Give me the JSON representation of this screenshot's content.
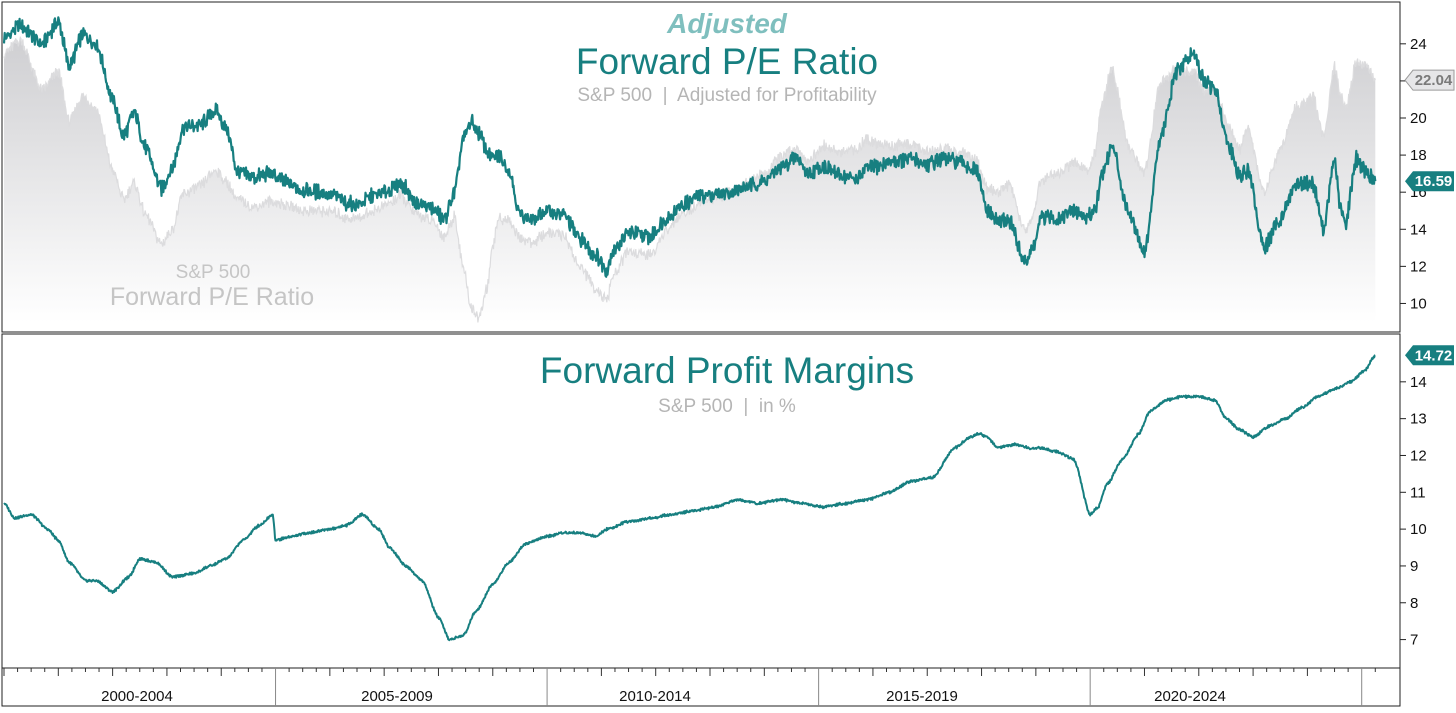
{
  "chart_data": [
    {
      "type": "line",
      "panel": "top",
      "title_prefix": "Adjusted",
      "title": "Forward P/E Ratio",
      "subtitle": "S&P 500  |  Adjusted for Profitability",
      "background_series_label_line1": "S&P 500",
      "background_series_label_line2": "Forward P/E Ratio",
      "ylim": [
        9,
        25.5
      ],
      "yticks": [
        10,
        12,
        14,
        16,
        18,
        20,
        22,
        24
      ],
      "xlim": [
        2000,
        2025.3
      ],
      "series": [
        {
          "name": "Adjusted Forward P/E Ratio",
          "color": "#177f80",
          "last_value_label": "16.59",
          "x": [
            2000.0,
            2000.3,
            2000.7,
            2001.0,
            2001.2,
            2001.45,
            2001.7,
            2002.0,
            2002.2,
            2002.4,
            2002.6,
            2002.9,
            2003.1,
            2003.3,
            2003.6,
            2003.9,
            2004.1,
            2004.3,
            2004.6,
            2004.9,
            2005.2,
            2005.5,
            2005.8,
            2006.1,
            2006.3,
            2006.5,
            2006.8,
            2007.1,
            2007.3,
            2007.6,
            2007.9,
            2008.1,
            2008.3,
            2008.45,
            2008.6,
            2008.75,
            2008.9,
            2009.0,
            2009.1,
            2009.3,
            2009.5,
            2009.75,
            2010.0,
            2010.3,
            2010.6,
            2010.9,
            2011.1,
            2011.2,
            2011.5,
            2011.9,
            2012.2,
            2012.5,
            2012.8,
            2013.1,
            2013.4,
            2013.7,
            2014.0,
            2014.3,
            2014.6,
            2014.8,
            2015.1,
            2015.4,
            2015.7,
            2015.9,
            2016.1,
            2016.4,
            2016.7,
            2017.0,
            2017.3,
            2017.6,
            2017.9,
            2018.1,
            2018.3,
            2018.5,
            2018.8,
            2018.95,
            2019.1,
            2019.4,
            2019.7,
            2019.95,
            2020.1,
            2020.2,
            2020.4,
            2020.7,
            2021.0,
            2021.3,
            2021.6,
            2021.9,
            2022.1,
            2022.3,
            2022.55,
            2022.75,
            2022.9,
            2023.2,
            2023.5,
            2023.8,
            2024.1,
            2024.3,
            2024.5,
            2024.6,
            2024.7,
            2024.9,
            2025.1,
            2025.25
          ],
          "values": [
            24.3,
            25.0,
            24.0,
            25.2,
            22.8,
            24.5,
            24.0,
            21.0,
            19.0,
            20.3,
            18.4,
            16.2,
            17.3,
            19.5,
            19.6,
            20.4,
            19.4,
            17.1,
            16.8,
            17.0,
            16.5,
            16.1,
            16.0,
            15.8,
            15.4,
            15.3,
            15.8,
            16.1,
            16.5,
            15.4,
            15.1,
            14.5,
            16.0,
            18.8,
            19.8,
            19.2,
            18.2,
            17.8,
            18.0,
            17.2,
            14.8,
            14.5,
            15.0,
            14.8,
            13.5,
            12.6,
            11.8,
            12.8,
            13.8,
            13.6,
            14.6,
            15.3,
            15.8,
            15.9,
            16.0,
            16.3,
            16.6,
            17.3,
            17.9,
            17.0,
            17.4,
            16.9,
            16.7,
            17.3,
            17.4,
            17.7,
            17.8,
            17.5,
            17.8,
            17.6,
            17.2,
            15.0,
            14.4,
            14.5,
            12.2,
            13.0,
            14.6,
            14.6,
            15.0,
            14.6,
            15.2,
            16.8,
            18.5,
            15.0,
            12.8,
            19.0,
            22.5,
            23.5,
            22.0,
            21.5,
            18.6,
            16.8,
            17.2,
            13.0,
            14.6,
            16.5,
            16.5,
            14.0,
            17.8,
            15.2,
            14.3,
            17.8,
            17.0,
            16.59
          ]
        },
        {
          "name": "S&P 500 Forward P/E Ratio",
          "color": "#d9d9db",
          "last_value_label": "22.04",
          "x": [
            2000.0,
            2000.3,
            2000.7,
            2001.0,
            2001.2,
            2001.45,
            2001.7,
            2002.0,
            2002.2,
            2002.4,
            2002.6,
            2002.9,
            2003.1,
            2003.3,
            2003.6,
            2003.9,
            2004.1,
            2004.3,
            2004.6,
            2004.9,
            2005.2,
            2005.5,
            2005.8,
            2006.1,
            2006.3,
            2006.5,
            2006.8,
            2007.1,
            2007.3,
            2007.6,
            2007.9,
            2008.1,
            2008.3,
            2008.45,
            2008.6,
            2008.75,
            2008.9,
            2009.0,
            2009.1,
            2009.3,
            2009.5,
            2009.75,
            2010.0,
            2010.3,
            2010.6,
            2010.9,
            2011.1,
            2011.2,
            2011.5,
            2011.9,
            2012.2,
            2012.5,
            2012.8,
            2013.1,
            2013.4,
            2013.7,
            2014.0,
            2014.3,
            2014.6,
            2014.8,
            2015.1,
            2015.4,
            2015.7,
            2015.9,
            2016.1,
            2016.4,
            2016.7,
            2017.0,
            2017.3,
            2017.6,
            2017.9,
            2018.1,
            2018.3,
            2018.5,
            2018.8,
            2018.95,
            2019.1,
            2019.4,
            2019.7,
            2019.95,
            2020.1,
            2020.2,
            2020.4,
            2020.7,
            2021.0,
            2021.3,
            2021.6,
            2021.9,
            2022.1,
            2022.3,
            2022.55,
            2022.75,
            2022.9,
            2023.2,
            2023.5,
            2023.8,
            2024.1,
            2024.3,
            2024.5,
            2024.6,
            2024.7,
            2024.9,
            2025.1,
            2025.25
          ],
          "values": [
            23.5,
            24.2,
            21.5,
            22.5,
            19.8,
            21.2,
            20.5,
            17.2,
            15.6,
            16.5,
            14.8,
            13.2,
            14.0,
            15.9,
            16.3,
            17.2,
            16.5,
            15.6,
            15.2,
            15.5,
            15.3,
            15.0,
            15.0,
            14.9,
            14.6,
            14.6,
            15.0,
            15.4,
            15.8,
            14.8,
            14.4,
            13.6,
            14.7,
            12.0,
            9.8,
            9.2,
            10.9,
            13.0,
            14.6,
            14.5,
            13.5,
            13.3,
            13.8,
            13.7,
            12.0,
            10.8,
            10.1,
            11.4,
            12.8,
            12.6,
            13.9,
            14.8,
            15.4,
            15.7,
            16.1,
            16.6,
            17.0,
            17.9,
            18.4,
            17.7,
            18.5,
            18.1,
            18.3,
            18.9,
            18.6,
            18.5,
            18.6,
            18.2,
            18.4,
            18.2,
            17.7,
            16.2,
            16.0,
            16.4,
            13.9,
            14.8,
            16.7,
            17.0,
            17.6,
            17.2,
            18.2,
            20.6,
            22.8,
            18.5,
            17.0,
            22.0,
            22.6,
            22.5,
            21.5,
            21.5,
            19.6,
            18.3,
            19.5,
            16.0,
            18.3,
            20.6,
            21.2,
            19.0,
            22.8,
            21.5,
            20.5,
            23.0,
            22.8,
            22.04
          ]
        }
      ]
    },
    {
      "type": "line",
      "panel": "bottom",
      "title": "Forward Profit Margins",
      "subtitle": "S&P 500  |  in %",
      "ylim": [
        6.5,
        15.0
      ],
      "yticks": [
        7,
        8,
        9,
        10,
        11,
        12,
        13,
        14
      ],
      "xlim": [
        2000,
        2025.3
      ],
      "series": [
        {
          "name": "S&P 500 Forward Profit Margins",
          "color": "#177f80",
          "last_value_label": "14.72",
          "x": [
            2000.0,
            2000.2,
            2000.5,
            2000.8,
            2001.0,
            2001.2,
            2001.5,
            2001.7,
            2002.0,
            2002.3,
            2002.5,
            2002.8,
            2003.1,
            2003.5,
            2003.8,
            2004.1,
            2004.4,
            2004.7,
            2004.95,
            2005.0,
            2005.3,
            2005.6,
            2006.0,
            2006.3,
            2006.6,
            2006.9,
            2007.1,
            2007.4,
            2007.7,
            2008.0,
            2008.2,
            2008.45,
            2008.7,
            2009.0,
            2009.3,
            2009.6,
            2010.0,
            2010.3,
            2010.6,
            2010.9,
            2011.1,
            2011.5,
            2011.9,
            2012.3,
            2012.7,
            2013.1,
            2013.5,
            2013.9,
            2014.3,
            2014.7,
            2015.1,
            2015.5,
            2015.9,
            2016.3,
            2016.7,
            2017.1,
            2017.5,
            2017.8,
            2017.95,
            2018.1,
            2018.3,
            2018.6,
            2018.9,
            2019.1,
            2019.4,
            2019.7,
            2020.0,
            2020.15,
            2020.3,
            2020.6,
            2020.9,
            2021.1,
            2021.4,
            2021.7,
            2022.0,
            2022.3,
            2022.5,
            2022.75,
            2023.0,
            2023.3,
            2023.6,
            2023.9,
            2024.2,
            2024.5,
            2024.8,
            2025.05,
            2025.25
          ],
          "values": [
            10.7,
            10.3,
            10.4,
            10.0,
            9.7,
            9.1,
            8.6,
            8.6,
            8.3,
            8.7,
            9.2,
            9.1,
            8.7,
            8.8,
            9.0,
            9.2,
            9.7,
            10.1,
            10.4,
            9.7,
            9.8,
            9.9,
            10.0,
            10.1,
            10.4,
            10.0,
            9.5,
            9.0,
            8.6,
            7.6,
            7.0,
            7.1,
            7.8,
            8.5,
            9.1,
            9.6,
            9.8,
            9.9,
            9.9,
            9.8,
            10.0,
            10.2,
            10.3,
            10.4,
            10.5,
            10.6,
            10.8,
            10.7,
            10.8,
            10.7,
            10.6,
            10.7,
            10.8,
            11.0,
            11.3,
            11.4,
            12.2,
            12.5,
            12.6,
            12.5,
            12.2,
            12.3,
            12.2,
            12.2,
            12.1,
            11.9,
            10.4,
            10.6,
            11.2,
            11.9,
            12.6,
            13.2,
            13.5,
            13.6,
            13.6,
            13.5,
            13.0,
            12.7,
            12.5,
            12.8,
            13.0,
            13.3,
            13.6,
            13.8,
            14.0,
            14.3,
            14.72
          ]
        }
      ]
    },
    {
      "type": "axis",
      "panel": "x-axis",
      "period_labels": [
        "2000-2004",
        "2005-2009",
        "2010-2014",
        "2015-2019",
        "2020-2024"
      ]
    }
  ]
}
